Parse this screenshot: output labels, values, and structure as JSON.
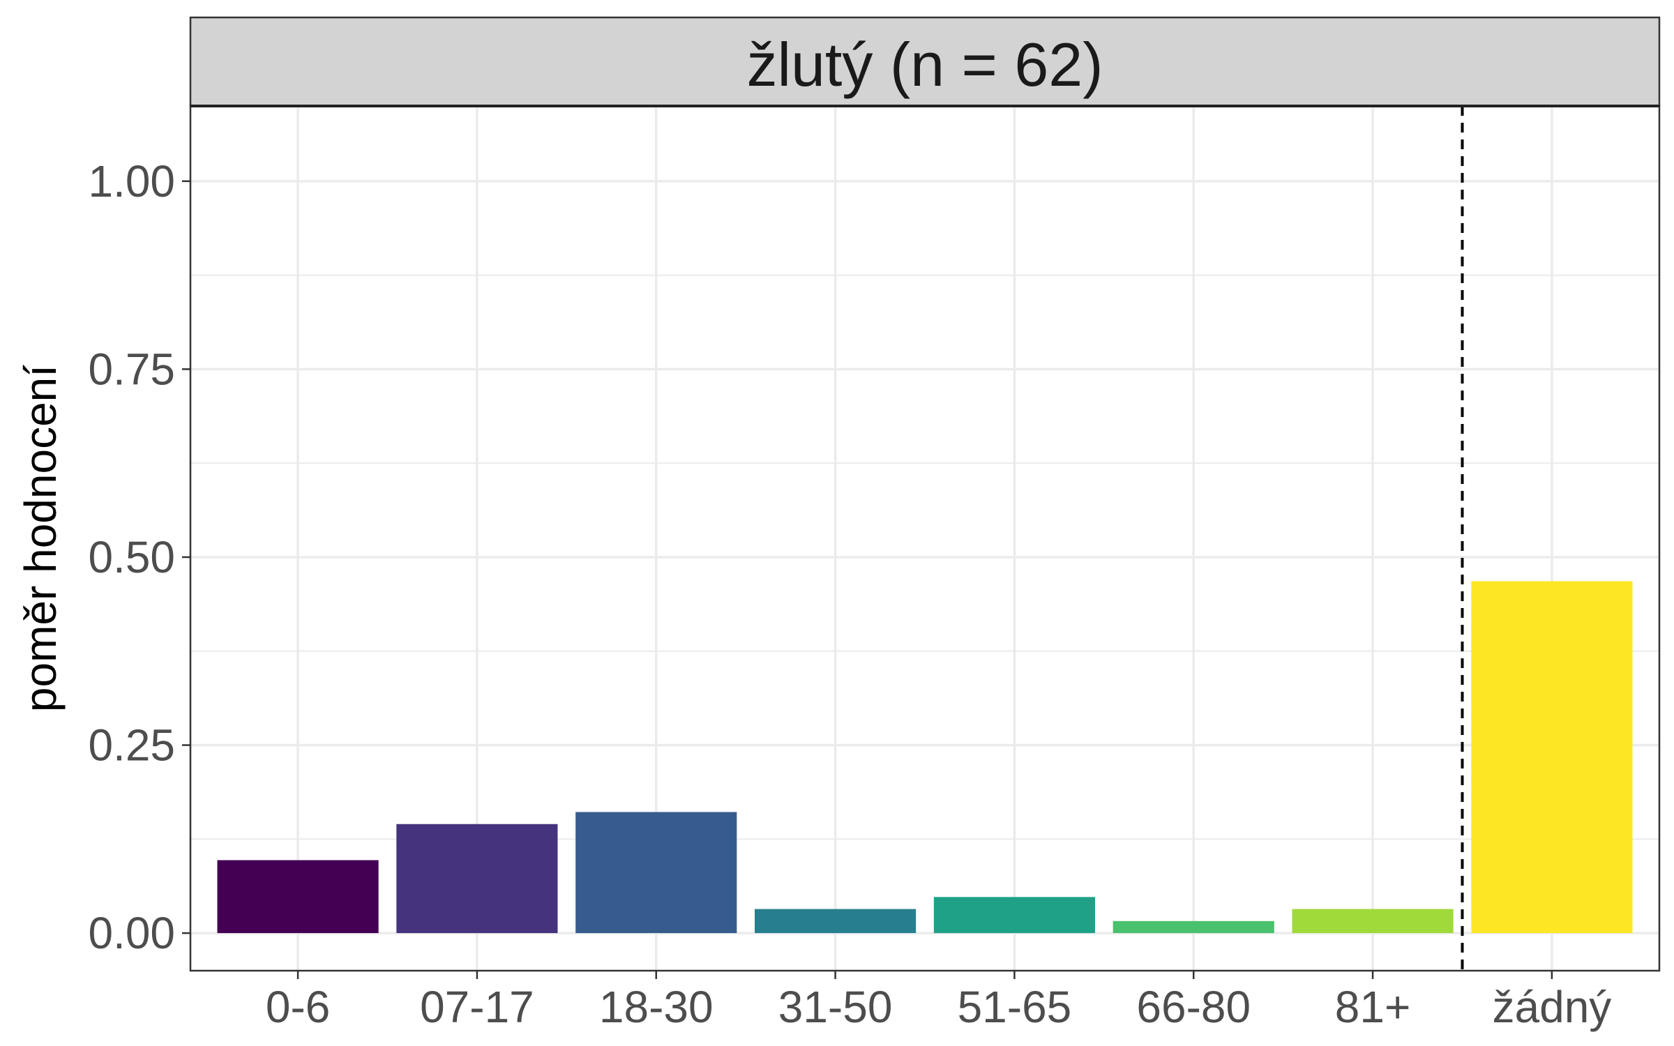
{
  "chart_data": {
    "type": "bar",
    "title": "žlutý (n = 62)",
    "xlabel": "",
    "ylabel": "poměr hodnocení",
    "categories": [
      "0-6",
      "07-17",
      "18-30",
      "31-50",
      "51-65",
      "66-80",
      "81+",
      "žádný"
    ],
    "values": [
      0.097,
      0.145,
      0.161,
      0.032,
      0.048,
      0.016,
      0.032,
      0.468
    ],
    "colors": [
      "#440154",
      "#46337E",
      "#365C8D",
      "#277F8E",
      "#1FA187",
      "#4AC16D",
      "#9FDA3A",
      "#FDE725"
    ],
    "ylim": [
      -0.05,
      1.1
    ],
    "yticks": [
      0.0,
      0.25,
      0.5,
      0.75,
      1.0
    ],
    "ytick_labels": [
      "0.00",
      "0.25",
      "0.50",
      "0.75",
      "1.00"
    ],
    "grid": true,
    "reference_line": {
      "style": "dashed",
      "between": [
        "81+",
        "žádný"
      ]
    },
    "legend": "none"
  }
}
